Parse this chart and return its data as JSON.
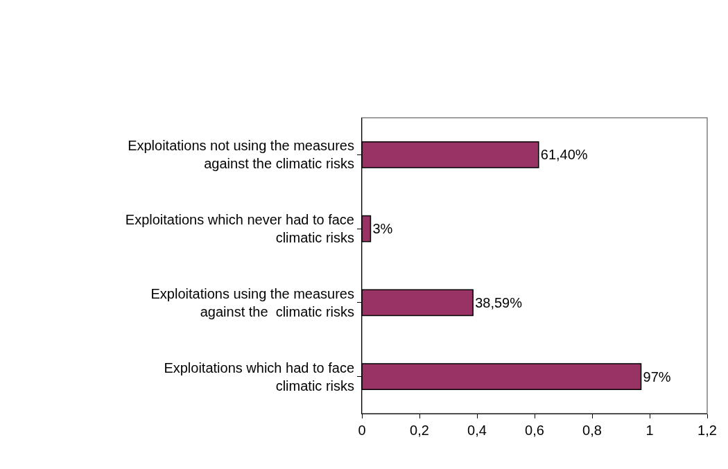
{
  "chart_data": {
    "type": "bar",
    "orientation": "horizontal",
    "categories": [
      "Exploitations not using the measures\nagainst the climatic risks",
      "Exploitations which never had to face\nclimatic risks",
      "Exploitations using the measures\nagainst the  climatic risks",
      "Exploitations which had to face\nclimatic risks"
    ],
    "values": [
      0.614,
      0.03,
      0.3859,
      0.97
    ],
    "value_labels": [
      "61,40%",
      "3%",
      "38,59%",
      "97%"
    ],
    "color": "#993366",
    "xlim": [
      0,
      1.2
    ],
    "xticks": [
      0,
      {
        "value": 0.2,
        "label": "0,2"
      },
      {
        "value": 0.4,
        "label": "0,4"
      },
      {
        "value": 0.6,
        "label": "0,6"
      },
      {
        "value": 0.8,
        "label": "0,8"
      },
      1,
      {
        "value": 1.2,
        "label": "1,2"
      }
    ],
    "marker": "none"
  }
}
